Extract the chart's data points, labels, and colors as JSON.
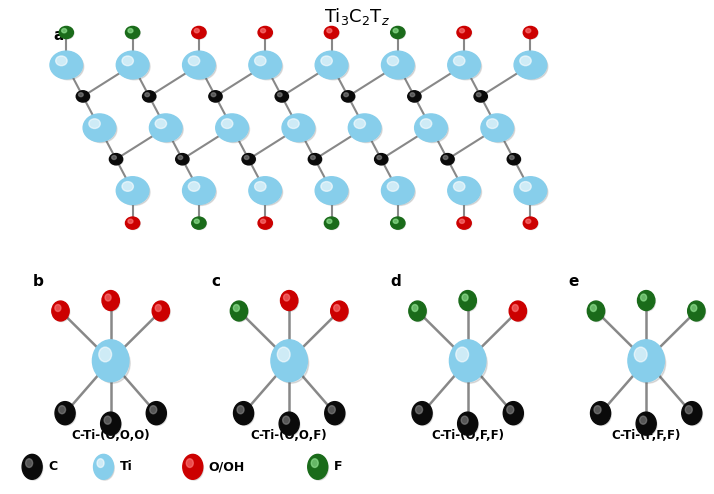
{
  "bg_color": "#ffffff",
  "ti_color": "#87CEEB",
  "c_color": "#0a0a0a",
  "o_color": "#cc0000",
  "f_color": "#1a6b1a",
  "bond_color": "#888888",
  "bottom_labels": [
    "C-Ti-(O,O,O)",
    "C-Ti-(O,O,F)",
    "C-Ti-(O,F,F)",
    "C-Ti-(F,F,F)"
  ],
  "panel_labels": [
    "b",
    "c",
    "d",
    "e"
  ],
  "top_term_colors": [
    [
      "#cc0000",
      "#cc0000",
      "#cc0000"
    ],
    [
      "#1a6b1a",
      "#cc0000",
      "#cc0000"
    ],
    [
      "#1a6b1a",
      "#1a6b1a",
      "#cc0000"
    ],
    [
      "#1a6b1a",
      "#1a6b1a",
      "#1a6b1a"
    ]
  ]
}
